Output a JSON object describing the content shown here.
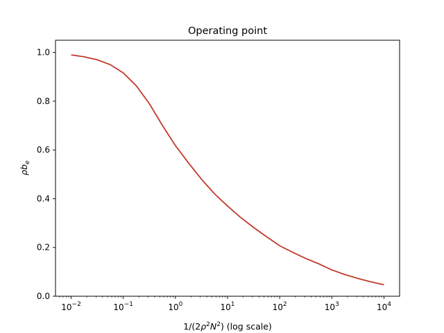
{
  "chart_data": {
    "type": "line",
    "title": "Operating point",
    "xlabel_prefix": "1/(2",
    "xlabel_rho": "ρ",
    "xlabel_exp1": "2",
    "xlabel_n": "N",
    "xlabel_exp2": "2",
    "xlabel_suffix": ") (log scale)",
    "ylabel_rho": "ρ",
    "ylabel_b": "b",
    "ylabel_sub": "e",
    "xscale": "log",
    "xlim": [
      0.01,
      10000
    ],
    "ylim": [
      0.0,
      1.0
    ],
    "grid": false,
    "legend": "none",
    "x_ticks": [
      {
        "value": 0.01,
        "base": "10",
        "exp": "−2"
      },
      {
        "value": 0.1,
        "base": "10",
        "exp": "−1"
      },
      {
        "value": 1,
        "base": "10",
        "exp": "0"
      },
      {
        "value": 10,
        "base": "10",
        "exp": "1"
      },
      {
        "value": 100,
        "base": "10",
        "exp": "2"
      },
      {
        "value": 1000,
        "base": "10",
        "exp": "3"
      },
      {
        "value": 10000,
        "base": "10",
        "exp": "4"
      }
    ],
    "y_ticks": [
      {
        "value": 0.0,
        "label": "0.0"
      },
      {
        "value": 0.2,
        "label": "0.2"
      },
      {
        "value": 0.4,
        "label": "0.4"
      },
      {
        "value": 0.6,
        "label": "0.6"
      },
      {
        "value": 0.8,
        "label": "0.8"
      },
      {
        "value": 1.0,
        "label": "1.0"
      }
    ],
    "series": [
      {
        "color": "#c0392b",
        "x": [
          0.01,
          0.0178,
          0.0316,
          0.0562,
          0.1,
          0.178,
          0.316,
          0.562,
          1,
          1.78,
          3.16,
          5.62,
          10,
          17.8,
          31.6,
          56.2,
          100,
          178,
          316,
          562,
          1000,
          1780,
          3160,
          5620,
          10000
        ],
        "y": [
          0.99,
          0.982,
          0.97,
          0.95,
          0.916,
          0.863,
          0.79,
          0.701,
          0.618,
          0.547,
          0.48,
          0.42,
          0.37,
          0.323,
          0.282,
          0.244,
          0.207,
          0.18,
          0.155,
          0.133,
          0.108,
          0.089,
          0.073,
          0.059,
          0.047
        ]
      }
    ]
  }
}
